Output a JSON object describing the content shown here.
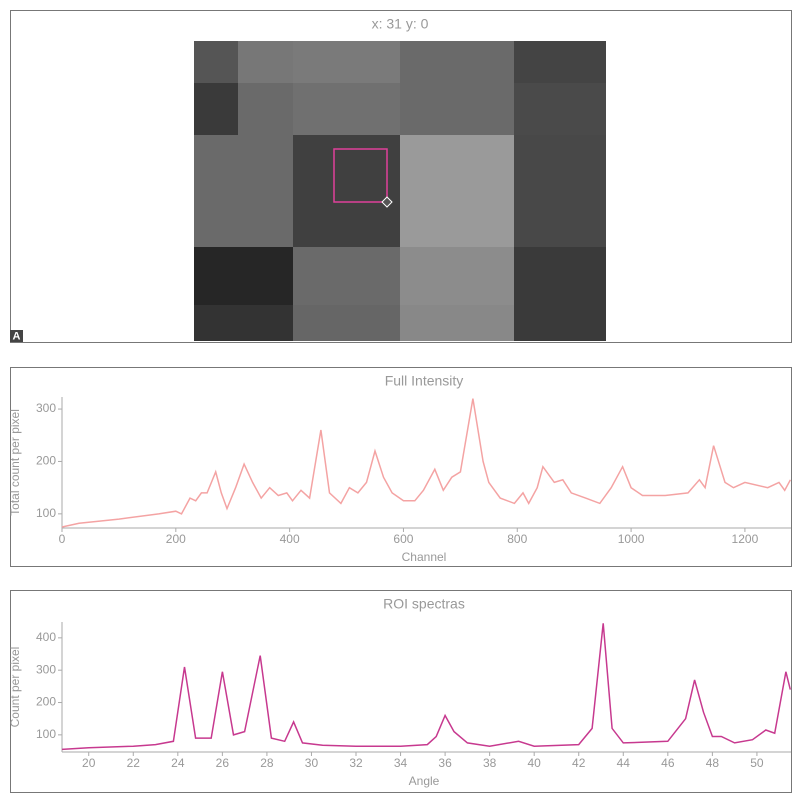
{
  "image_panel": {
    "title": "x: 31 y: 0",
    "badge": "A"
  },
  "chart_data": [
    {
      "type": "line",
      "title": "Full Intensity",
      "x_label": "Channel",
      "y_label": "Total count per pixel",
      "color": "#f4a3a3",
      "x": [
        0,
        30,
        100,
        170,
        200,
        210,
        225,
        235,
        245,
        255,
        270,
        280,
        290,
        305,
        320,
        335,
        350,
        365,
        380,
        395,
        405,
        420,
        435,
        455,
        470,
        490,
        505,
        520,
        535,
        550,
        565,
        580,
        600,
        620,
        635,
        655,
        670,
        685,
        700,
        722,
        740,
        750,
        770,
        795,
        810,
        820,
        835,
        845,
        865,
        880,
        895,
        920,
        945,
        965,
        985,
        1000,
        1020,
        1060,
        1100,
        1120,
        1130,
        1145,
        1165,
        1180,
        1200,
        1240,
        1260,
        1270,
        1280
      ],
      "values": [
        75,
        82,
        90,
        100,
        105,
        100,
        130,
        125,
        140,
        140,
        180,
        140,
        110,
        150,
        195,
        160,
        130,
        150,
        135,
        140,
        125,
        145,
        130,
        260,
        140,
        120,
        150,
        140,
        160,
        220,
        170,
        140,
        125,
        125,
        145,
        185,
        145,
        170,
        180,
        320,
        200,
        160,
        130,
        120,
        140,
        120,
        150,
        190,
        160,
        165,
        140,
        130,
        120,
        150,
        190,
        150,
        135,
        135,
        140,
        165,
        150,
        230,
        160,
        150,
        160,
        150,
        160,
        145,
        165
      ],
      "xlim": [
        0,
        1281
      ],
      "ylim": [
        73,
        323
      ],
      "xticks": [
        0,
        200,
        400,
        600,
        800,
        1000,
        1200
      ],
      "yticks": [
        100,
        200,
        300
      ]
    },
    {
      "type": "line",
      "title": "ROI spectras",
      "x_label": "Angle",
      "y_label": "Count per pixel",
      "color": "#c7398f",
      "x": [
        18.8,
        20,
        22,
        23,
        23.8,
        24.3,
        24.8,
        25.5,
        26.0,
        26.5,
        27.0,
        27.7,
        28.2,
        28.8,
        29.2,
        29.6,
        30.5,
        32,
        34,
        35.2,
        35.6,
        36.0,
        36.4,
        37,
        38,
        39.3,
        40,
        42,
        42.6,
        43.1,
        43.5,
        44,
        46,
        46.8,
        47.2,
        47.6,
        48,
        48.4,
        49,
        49.8,
        50.4,
        50.8,
        51.3,
        51.5
      ],
      "values": [
        55,
        60,
        65,
        70,
        80,
        310,
        90,
        90,
        295,
        100,
        110,
        345,
        90,
        80,
        140,
        75,
        68,
        65,
        65,
        70,
        95,
        160,
        110,
        75,
        65,
        80,
        65,
        70,
        120,
        445,
        120,
        75,
        80,
        150,
        270,
        170,
        95,
        95,
        75,
        85,
        115,
        105,
        295,
        240
      ],
      "xlim": [
        18.8,
        51.53
      ],
      "ylim": [
        47,
        449
      ],
      "xticks": [
        20,
        22,
        24,
        26,
        28,
        30,
        32,
        34,
        36,
        38,
        40,
        42,
        44,
        46,
        48,
        50
      ],
      "yticks": [
        100,
        200,
        300,
        400
      ]
    }
  ]
}
